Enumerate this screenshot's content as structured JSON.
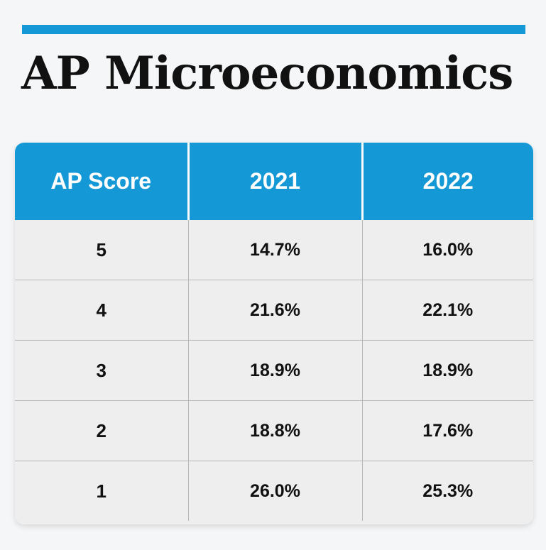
{
  "title": "AP Microeconomics",
  "colors": {
    "accent": "#1598d6",
    "background": "#f5f6f7",
    "table_body": "#eeeeee",
    "text": "#111111"
  },
  "table": {
    "headers": [
      "AP Score",
      "2021",
      "2022"
    ],
    "rows": [
      {
        "score": "5",
        "y2021": "14.7%",
        "y2022": "16.0%"
      },
      {
        "score": "4",
        "y2021": "21.6%",
        "y2022": "22.1%"
      },
      {
        "score": "3",
        "y2021": "18.9%",
        "y2022": "18.9%"
      },
      {
        "score": "2",
        "y2021": "18.8%",
        "y2022": "17.6%"
      },
      {
        "score": "1",
        "y2021": "26.0%",
        "y2022": "25.3%"
      }
    ]
  }
}
